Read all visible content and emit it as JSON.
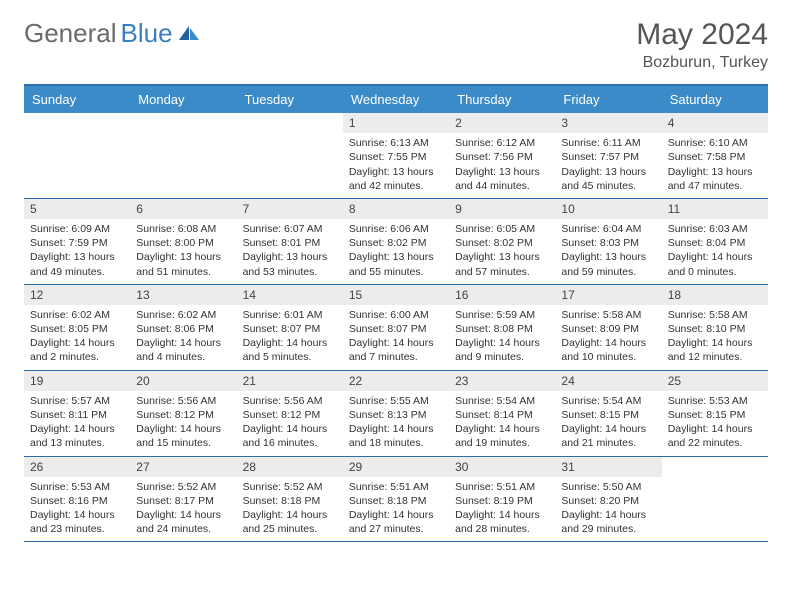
{
  "brand": {
    "part1": "General",
    "part2": "Blue"
  },
  "title": "May 2024",
  "location": "Bozburun, Turkey",
  "colors": {
    "header_bg": "#3b8bc9",
    "border": "#2c6ca8",
    "daynum_bg": "#ececec",
    "text": "#333333",
    "brand_gray": "#6b6b6b",
    "brand_blue": "#3b7fbf"
  },
  "weekdays": [
    "Sunday",
    "Monday",
    "Tuesday",
    "Wednesday",
    "Thursday",
    "Friday",
    "Saturday"
  ],
  "weeks": [
    [
      {
        "num": "",
        "lines": [
          "",
          "",
          "",
          ""
        ]
      },
      {
        "num": "",
        "lines": [
          "",
          "",
          "",
          ""
        ]
      },
      {
        "num": "",
        "lines": [
          "",
          "",
          "",
          ""
        ]
      },
      {
        "num": "1",
        "lines": [
          "Sunrise: 6:13 AM",
          "Sunset: 7:55 PM",
          "Daylight: 13 hours",
          "and 42 minutes."
        ]
      },
      {
        "num": "2",
        "lines": [
          "Sunrise: 6:12 AM",
          "Sunset: 7:56 PM",
          "Daylight: 13 hours",
          "and 44 minutes."
        ]
      },
      {
        "num": "3",
        "lines": [
          "Sunrise: 6:11 AM",
          "Sunset: 7:57 PM",
          "Daylight: 13 hours",
          "and 45 minutes."
        ]
      },
      {
        "num": "4",
        "lines": [
          "Sunrise: 6:10 AM",
          "Sunset: 7:58 PM",
          "Daylight: 13 hours",
          "and 47 minutes."
        ]
      }
    ],
    [
      {
        "num": "5",
        "lines": [
          "Sunrise: 6:09 AM",
          "Sunset: 7:59 PM",
          "Daylight: 13 hours",
          "and 49 minutes."
        ]
      },
      {
        "num": "6",
        "lines": [
          "Sunrise: 6:08 AM",
          "Sunset: 8:00 PM",
          "Daylight: 13 hours",
          "and 51 minutes."
        ]
      },
      {
        "num": "7",
        "lines": [
          "Sunrise: 6:07 AM",
          "Sunset: 8:01 PM",
          "Daylight: 13 hours",
          "and 53 minutes."
        ]
      },
      {
        "num": "8",
        "lines": [
          "Sunrise: 6:06 AM",
          "Sunset: 8:02 PM",
          "Daylight: 13 hours",
          "and 55 minutes."
        ]
      },
      {
        "num": "9",
        "lines": [
          "Sunrise: 6:05 AM",
          "Sunset: 8:02 PM",
          "Daylight: 13 hours",
          "and 57 minutes."
        ]
      },
      {
        "num": "10",
        "lines": [
          "Sunrise: 6:04 AM",
          "Sunset: 8:03 PM",
          "Daylight: 13 hours",
          "and 59 minutes."
        ]
      },
      {
        "num": "11",
        "lines": [
          "Sunrise: 6:03 AM",
          "Sunset: 8:04 PM",
          "Daylight: 14 hours",
          "and 0 minutes."
        ]
      }
    ],
    [
      {
        "num": "12",
        "lines": [
          "Sunrise: 6:02 AM",
          "Sunset: 8:05 PM",
          "Daylight: 14 hours",
          "and 2 minutes."
        ]
      },
      {
        "num": "13",
        "lines": [
          "Sunrise: 6:02 AM",
          "Sunset: 8:06 PM",
          "Daylight: 14 hours",
          "and 4 minutes."
        ]
      },
      {
        "num": "14",
        "lines": [
          "Sunrise: 6:01 AM",
          "Sunset: 8:07 PM",
          "Daylight: 14 hours",
          "and 5 minutes."
        ]
      },
      {
        "num": "15",
        "lines": [
          "Sunrise: 6:00 AM",
          "Sunset: 8:07 PM",
          "Daylight: 14 hours",
          "and 7 minutes."
        ]
      },
      {
        "num": "16",
        "lines": [
          "Sunrise: 5:59 AM",
          "Sunset: 8:08 PM",
          "Daylight: 14 hours",
          "and 9 minutes."
        ]
      },
      {
        "num": "17",
        "lines": [
          "Sunrise: 5:58 AM",
          "Sunset: 8:09 PM",
          "Daylight: 14 hours",
          "and 10 minutes."
        ]
      },
      {
        "num": "18",
        "lines": [
          "Sunrise: 5:58 AM",
          "Sunset: 8:10 PM",
          "Daylight: 14 hours",
          "and 12 minutes."
        ]
      }
    ],
    [
      {
        "num": "19",
        "lines": [
          "Sunrise: 5:57 AM",
          "Sunset: 8:11 PM",
          "Daylight: 14 hours",
          "and 13 minutes."
        ]
      },
      {
        "num": "20",
        "lines": [
          "Sunrise: 5:56 AM",
          "Sunset: 8:12 PM",
          "Daylight: 14 hours",
          "and 15 minutes."
        ]
      },
      {
        "num": "21",
        "lines": [
          "Sunrise: 5:56 AM",
          "Sunset: 8:12 PM",
          "Daylight: 14 hours",
          "and 16 minutes."
        ]
      },
      {
        "num": "22",
        "lines": [
          "Sunrise: 5:55 AM",
          "Sunset: 8:13 PM",
          "Daylight: 14 hours",
          "and 18 minutes."
        ]
      },
      {
        "num": "23",
        "lines": [
          "Sunrise: 5:54 AM",
          "Sunset: 8:14 PM",
          "Daylight: 14 hours",
          "and 19 minutes."
        ]
      },
      {
        "num": "24",
        "lines": [
          "Sunrise: 5:54 AM",
          "Sunset: 8:15 PM",
          "Daylight: 14 hours",
          "and 21 minutes."
        ]
      },
      {
        "num": "25",
        "lines": [
          "Sunrise: 5:53 AM",
          "Sunset: 8:15 PM",
          "Daylight: 14 hours",
          "and 22 minutes."
        ]
      }
    ],
    [
      {
        "num": "26",
        "lines": [
          "Sunrise: 5:53 AM",
          "Sunset: 8:16 PM",
          "Daylight: 14 hours",
          "and 23 minutes."
        ]
      },
      {
        "num": "27",
        "lines": [
          "Sunrise: 5:52 AM",
          "Sunset: 8:17 PM",
          "Daylight: 14 hours",
          "and 24 minutes."
        ]
      },
      {
        "num": "28",
        "lines": [
          "Sunrise: 5:52 AM",
          "Sunset: 8:18 PM",
          "Daylight: 14 hours",
          "and 25 minutes."
        ]
      },
      {
        "num": "29",
        "lines": [
          "Sunrise: 5:51 AM",
          "Sunset: 8:18 PM",
          "Daylight: 14 hours",
          "and 27 minutes."
        ]
      },
      {
        "num": "30",
        "lines": [
          "Sunrise: 5:51 AM",
          "Sunset: 8:19 PM",
          "Daylight: 14 hours",
          "and 28 minutes."
        ]
      },
      {
        "num": "31",
        "lines": [
          "Sunrise: 5:50 AM",
          "Sunset: 8:20 PM",
          "Daylight: 14 hours",
          "and 29 minutes."
        ]
      },
      {
        "num": "",
        "lines": [
          "",
          "",
          "",
          ""
        ]
      }
    ]
  ]
}
